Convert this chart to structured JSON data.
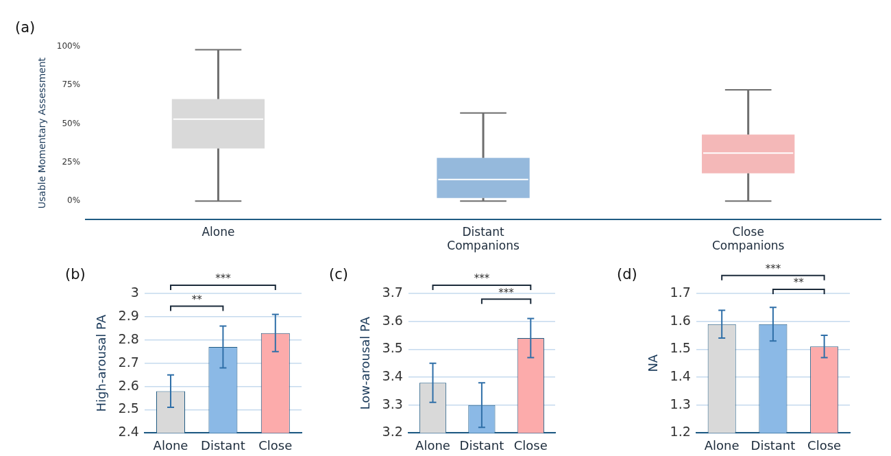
{
  "chart_data": [
    {
      "type": "box",
      "title": "(a)",
      "ylabel": "Usable Momentary Assessment",
      "categories": [
        "Alone",
        "Distant\nCompanions",
        "Close\nCompanions"
      ],
      "colors": [
        "#d9d9d9",
        "#95b9dc",
        "#f4b8b8"
      ],
      "boxes": [
        {
          "low": 0,
          "q1": 34,
          "median": 53,
          "q3": 66,
          "high": 98
        },
        {
          "low": 0,
          "q1": 2,
          "median": 14,
          "q3": 28,
          "high": 57
        },
        {
          "low": 0,
          "q1": 18,
          "median": 31,
          "q3": 43,
          "high": 72
        }
      ],
      "ylim": [
        -12,
        100
      ],
      "yticks": [
        {
          "value": 0,
          "label": "0%"
        },
        {
          "value": 25,
          "label": "25%"
        },
        {
          "value": 50,
          "label": "50%"
        },
        {
          "value": 75,
          "label": "75%"
        },
        {
          "value": 100,
          "label": "100%"
        }
      ],
      "grid": false,
      "legend": false
    },
    {
      "type": "bar",
      "title": "(b)",
      "ylabel": "High-arousal PA",
      "categories": [
        "Alone",
        "Distant",
        "Close"
      ],
      "values": [
        2.58,
        2.77,
        2.83
      ],
      "colors": [
        "#d9d9d9",
        "#8bb9e6",
        "#fcabab"
      ],
      "errors": [
        0.07,
        0.09,
        0.08
      ],
      "ylim": [
        2.4,
        3
      ],
      "yticks": [
        2.4,
        2.5,
        2.6,
        2.7,
        2.8,
        2.9,
        3
      ],
      "grid": "y",
      "legend": false,
      "annotations": [
        "**",
        "***"
      ]
    },
    {
      "type": "bar",
      "title": "(c)",
      "ylabel": "Low-arousal PA",
      "categories": [
        "Alone",
        "Distant",
        "Close"
      ],
      "values": [
        3.38,
        3.3,
        3.54
      ],
      "colors": [
        "#d9d9d9",
        "#8bb9e6",
        "#fcabab"
      ],
      "errors": [
        0.07,
        0.08,
        0.07
      ],
      "ylim": [
        3.2,
        3.7
      ],
      "yticks": [
        3.2,
        3.3,
        3.4,
        3.5,
        3.6,
        3.7
      ],
      "grid": "y",
      "legend": false,
      "annotations": [
        "***",
        "***"
      ]
    },
    {
      "type": "bar",
      "title": "(d)",
      "ylabel": "NA",
      "categories": [
        "Alone",
        "Distant",
        "Close"
      ],
      "values": [
        1.59,
        1.59,
        1.51
      ],
      "colors": [
        "#d9d9d9",
        "#8bb9e6",
        "#fcabab"
      ],
      "errors": [
        0.05,
        0.06,
        0.04
      ],
      "ylim": [
        1.2,
        1.7
      ],
      "yticks": [
        1.2,
        1.3,
        1.4,
        1.5,
        1.6,
        1.7
      ],
      "grid": "y",
      "legend": false,
      "annotations": [
        "***",
        "**"
      ]
    }
  ]
}
